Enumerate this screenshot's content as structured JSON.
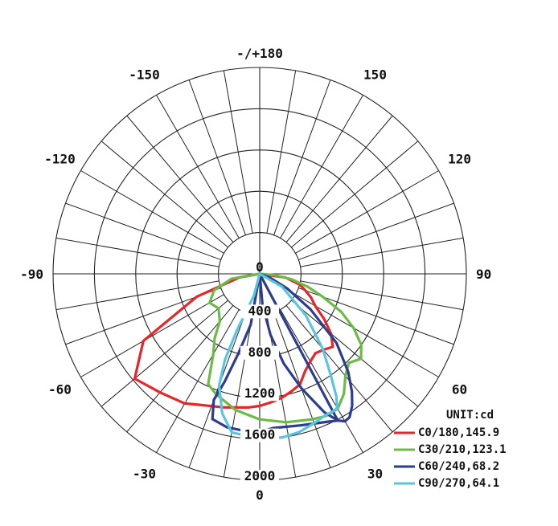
{
  "chart_data": {
    "type": "polar",
    "unit_label": "UNIT:cd",
    "center_label": "0",
    "radial_ticks": [
      {
        "value": 400,
        "label": "400"
      },
      {
        "value": 800,
        "label": "800"
      },
      {
        "value": 1200,
        "label": "1200"
      },
      {
        "value": 1600,
        "label": "1600"
      },
      {
        "value": 2000,
        "label": "2000"
      }
    ],
    "rmax": 2000,
    "angle_labels": [
      {
        "angle": 0,
        "label": "0"
      },
      {
        "angle": 30,
        "label": "30"
      },
      {
        "angle": 60,
        "label": "60"
      },
      {
        "angle": 90,
        "label": "90"
      },
      {
        "angle": 120,
        "label": "120"
      },
      {
        "angle": 150,
        "label": "150"
      },
      {
        "angle": 180,
        "label": "-/+180"
      },
      {
        "angle": -150,
        "label": "-150"
      },
      {
        "angle": -120,
        "label": "-120"
      },
      {
        "angle": -90,
        "label": "-90"
      },
      {
        "angle": -60,
        "label": "-60"
      },
      {
        "angle": -30,
        "label": "-30"
      }
    ],
    "grid": true,
    "legend_position": "bottom-right",
    "series": [
      {
        "name": "C0/180,145.9",
        "color": "#e8262a",
        "points": [
          [
            -80,
            200
          ],
          [
            -70,
            650
          ],
          [
            -60,
            1300
          ],
          [
            -50,
            1580
          ],
          [
            -40,
            1500
          ],
          [
            -30,
            1450
          ],
          [
            -25,
            1400
          ],
          [
            -15,
            1340
          ],
          [
            -5,
            1300
          ],
          [
            0,
            1280
          ],
          [
            5,
            1250
          ],
          [
            10,
            1220
          ],
          [
            15,
            1180
          ],
          [
            20,
            1140
          ],
          [
            25,
            1040
          ],
          [
            30,
            980
          ],
          [
            35,
            940
          ],
          [
            40,
            960
          ],
          [
            45,
            1000
          ],
          [
            50,
            900
          ],
          [
            55,
            760
          ],
          [
            60,
            620
          ],
          [
            65,
            550
          ],
          [
            70,
            470
          ],
          [
            75,
            400
          ],
          [
            82,
            250
          ],
          [
            88,
            0
          ]
        ]
      },
      {
        "name": "C30/210,123.1",
        "color": "#6cbb46",
        "points": [
          [
            -90,
            0
          ],
          [
            -80,
            280
          ],
          [
            -70,
            470
          ],
          [
            -60,
            560
          ],
          [
            -50,
            520
          ],
          [
            -40,
            600
          ],
          [
            -35,
            760
          ],
          [
            -30,
            900
          ],
          [
            -25,
            1180
          ],
          [
            -20,
            1240
          ],
          [
            -10,
            1340
          ],
          [
            0,
            1410
          ],
          [
            10,
            1460
          ],
          [
            20,
            1500
          ],
          [
            25,
            1520
          ],
          [
            30,
            1510
          ],
          [
            35,
            1420
          ],
          [
            40,
            1290
          ],
          [
            45,
            1220
          ],
          [
            50,
            1280
          ],
          [
            55,
            1200
          ],
          [
            60,
            1050
          ],
          [
            65,
            870
          ],
          [
            70,
            650
          ],
          [
            75,
            480
          ],
          [
            80,
            320
          ],
          [
            85,
            150
          ],
          [
            90,
            0
          ]
        ]
      },
      {
        "name": "C60/240,68.2",
        "color": "#2d3d8e",
        "points": [
          [
            0,
            0
          ],
          [
            5,
            300
          ],
          [
            10,
            600
          ],
          [
            15,
            900
          ],
          [
            20,
            1180
          ],
          [
            25,
            1480
          ],
          [
            28,
            1610
          ],
          [
            30,
            1650
          ],
          [
            32,
            1640
          ],
          [
            35,
            1560
          ],
          [
            38,
            1450
          ],
          [
            42,
            1280
          ],
          [
            48,
            1000
          ],
          [
            55,
            600
          ],
          [
            62,
            300
          ],
          [
            70,
            100
          ],
          [
            80,
            0
          ],
          [
            -10,
            500
          ],
          [
            -15,
            800
          ],
          [
            -18,
            1100
          ],
          [
            -20,
            1300
          ],
          [
            -18,
            1480
          ],
          [
            -12,
            1520
          ],
          [
            -5,
            1530
          ],
          [
            0,
            1530
          ],
          [
            5,
            1500
          ],
          [
            15,
            1520
          ],
          [
            25,
            1580
          ],
          [
            28,
            1610
          ]
        ]
      },
      {
        "name": "C90/270,64.1",
        "color": "#5ac5df",
        "points": [
          [
            -5,
            0
          ],
          [
            -15,
            220
          ],
          [
            -20,
            400
          ],
          [
            -22,
            600
          ],
          [
            -22,
            900
          ],
          [
            -20,
            1150
          ],
          [
            -15,
            1400
          ],
          [
            -10,
            1560
          ],
          [
            0,
            1600
          ],
          [
            8,
            1600
          ],
          [
            14,
            1580
          ],
          [
            20,
            1540
          ],
          [
            25,
            1510
          ],
          [
            28,
            1510
          ],
          [
            30,
            1500
          ],
          [
            32,
            1400
          ],
          [
            35,
            1200
          ],
          [
            40,
            950
          ],
          [
            48,
            600
          ],
          [
            60,
            250
          ],
          [
            75,
            0
          ]
        ]
      }
    ]
  }
}
